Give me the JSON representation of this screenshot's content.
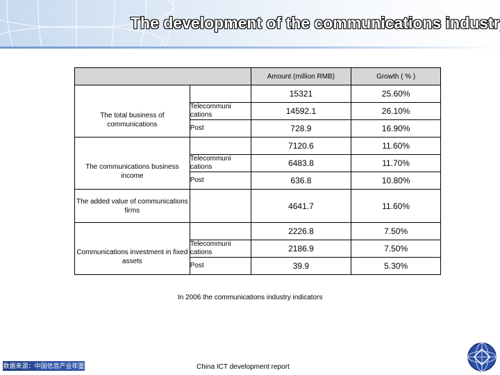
{
  "page": {
    "title": "The development of the communications industry",
    "caption": "In 2006 the communications industry indicators",
    "source": "China ICT development report",
    "footer_banner": "数据来源：中国信息产业年鉴"
  },
  "table": {
    "headers": {
      "amount": "Amount (million RMB)",
      "growth": "Growth ( % )"
    },
    "categories": {
      "total": "The total business of communications",
      "income": "The communications business income",
      "added": "The added value of communications firms",
      "investment": "Communications investment in fixed assets"
    },
    "sub_labels": {
      "telecom": "Telecommuni cations",
      "post": "Post"
    },
    "rows": [
      {
        "amount": "15321",
        "growth": "25.60%"
      },
      {
        "amount": "14592.1",
        "growth": "26.10%"
      },
      {
        "amount": "728.9",
        "growth": "16.90%"
      },
      {
        "amount": "7120.6",
        "growth": "11.60%"
      },
      {
        "amount": "6483.8",
        "growth": "11.70%"
      },
      {
        "amount": "636.8",
        "growth": "10.80%"
      },
      {
        "amount": "4641.7",
        "growth": "11.60%"
      },
      {
        "amount": "2226.8",
        "growth": "7.50%"
      },
      {
        "amount": "2186.9",
        "growth": "7.50%"
      },
      {
        "amount": "39.9",
        "growth": "5.30%"
      }
    ]
  },
  "colors": {
    "header_fill": "#d6d6d6",
    "banner": "#1d3c86",
    "title_text": "#ffffff"
  }
}
